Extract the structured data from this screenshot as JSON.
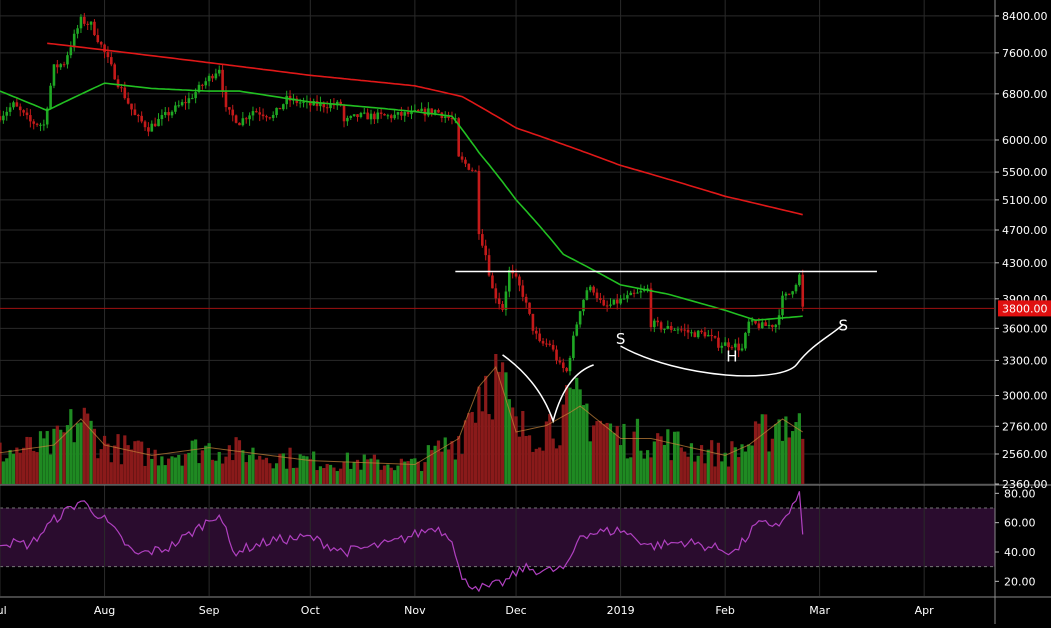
{
  "chart_data": {
    "type": "candlestick",
    "colors": {
      "background": "#000000",
      "grid": "#2a2a2a",
      "up": "#1fa824",
      "down": "#c41a1a",
      "sma_short": "#22c022",
      "sma_long": "#e01818",
      "volume_ma": "#c8843a",
      "rsi_line": "#b040c0",
      "rsi_band": "#2a0c2e",
      "axis_text": "#ffffff",
      "last_price_bg": "#e01010",
      "annotation": "#ffffff"
    },
    "x_axis": {
      "labels": [
        "Jul",
        "Aug",
        "Sep",
        "Oct",
        "Nov",
        "Dec",
        "2019",
        "Feb",
        "Mar",
        "Apr"
      ],
      "label_dates": [
        "2018-07-01",
        "2018-08-01",
        "2018-09-01",
        "2018-10-01",
        "2018-11-01",
        "2018-12-01",
        "2019-01-01",
        "2019-02-01",
        "2019-03-01",
        "2019-04-01"
      ],
      "range": [
        "2018-07-01",
        "2019-04-22"
      ]
    },
    "price_axis": {
      "scale": "log",
      "range": [
        2360,
        8700
      ],
      "ticks": [
        8400,
        7600,
        6800,
        6000,
        5500,
        5100,
        4700,
        4300,
        3900,
        3600,
        3300,
        3000,
        2760,
        2560,
        2360
      ],
      "tick_labels": [
        "8400.00",
        "7600.00",
        "6800.00",
        "6000.00",
        "5500.00",
        "5100.00",
        "4700.00",
        "4300.00",
        "3900.00",
        "3600.00",
        "3300.00",
        "3000.00",
        "2760.00",
        "2560.00",
        "2360.00"
      ],
      "last_price": 3800,
      "last_price_label": "3800.00"
    },
    "price_keyframes": [
      [
        "2018-07-01",
        6400
      ],
      [
        "2018-07-05",
        6600
      ],
      [
        "2018-07-10",
        6300
      ],
      [
        "2018-07-14",
        6250
      ],
      [
        "2018-07-17",
        7300
      ],
      [
        "2018-07-20",
        7400
      ],
      [
        "2018-07-25",
        8300
      ],
      [
        "2018-07-28",
        8200
      ],
      [
        "2018-08-01",
        7600
      ],
      [
        "2018-08-05",
        7000
      ],
      [
        "2018-08-10",
        6400
      ],
      [
        "2018-08-14",
        6200
      ],
      [
        "2018-08-20",
        6450
      ],
      [
        "2018-08-26",
        6700
      ],
      [
        "2018-09-01",
        7100
      ],
      [
        "2018-09-04",
        7300
      ],
      [
        "2018-09-06",
        6500
      ],
      [
        "2018-09-10",
        6300
      ],
      [
        "2018-09-14",
        6500
      ],
      [
        "2018-09-20",
        6400
      ],
      [
        "2018-09-24",
        6700
      ],
      [
        "2018-10-01",
        6600
      ],
      [
        "2018-10-10",
        6600
      ],
      [
        "2018-10-11",
        6300
      ],
      [
        "2018-10-15",
        6400
      ],
      [
        "2018-10-25",
        6400
      ],
      [
        "2018-11-01",
        6450
      ],
      [
        "2018-11-07",
        6500
      ],
      [
        "2018-11-13",
        6300
      ],
      [
        "2018-11-14",
        5700
      ],
      [
        "2018-11-19",
        5500
      ],
      [
        "2018-11-20",
        4700
      ],
      [
        "2018-11-22",
        4400
      ],
      [
        "2018-11-24",
        4000
      ],
      [
        "2018-11-27",
        3800
      ],
      [
        "2018-11-29",
        4200
      ],
      [
        "2018-12-01",
        4100
      ],
      [
        "2018-12-03",
        3950
      ],
      [
        "2018-12-06",
        3600
      ],
      [
        "2018-12-08",
        3450
      ],
      [
        "2018-12-11",
        3450
      ],
      [
        "2018-12-14",
        3250
      ],
      [
        "2018-12-16",
        3200
      ],
      [
        "2018-12-18",
        3500
      ],
      [
        "2018-12-20",
        3800
      ],
      [
        "2018-12-22",
        4000
      ],
      [
        "2018-12-24",
        4000
      ],
      [
        "2018-12-27",
        3800
      ],
      [
        "2018-12-30",
        3850
      ],
      [
        "2019-01-02",
        3900
      ],
      [
        "2019-01-06",
        3950
      ],
      [
        "2019-01-09",
        4000
      ],
      [
        "2019-01-10",
        3650
      ],
      [
        "2019-01-14",
        3600
      ],
      [
        "2019-01-18",
        3600
      ],
      [
        "2019-01-22",
        3550
      ],
      [
        "2019-01-26",
        3550
      ],
      [
        "2019-01-30",
        3450
      ],
      [
        "2019-02-03",
        3450
      ],
      [
        "2019-02-06",
        3400
      ],
      [
        "2019-02-08",
        3650
      ],
      [
        "2019-02-12",
        3620
      ],
      [
        "2019-02-16",
        3640
      ],
      [
        "2019-02-18",
        3900
      ],
      [
        "2019-02-20",
        3950
      ],
      [
        "2019-02-23",
        4150
      ],
      [
        "2019-02-24",
        3800
      ]
    ],
    "sma_short_keyframes": [
      [
        "2018-07-01",
        6850
      ],
      [
        "2018-07-15",
        6500
      ],
      [
        "2018-08-01",
        7000
      ],
      [
        "2018-08-15",
        6900
      ],
      [
        "2018-09-01",
        6850
      ],
      [
        "2018-09-10",
        6850
      ],
      [
        "2018-10-01",
        6650
      ],
      [
        "2018-10-20",
        6550
      ],
      [
        "2018-11-01",
        6480
      ],
      [
        "2018-11-12",
        6400
      ],
      [
        "2018-11-20",
        5800
      ],
      [
        "2018-12-01",
        5100
      ],
      [
        "2018-12-15",
        4400
      ],
      [
        "2019-01-01",
        4050
      ],
      [
        "2019-01-15",
        3950
      ],
      [
        "2019-02-01",
        3780
      ],
      [
        "2019-02-10",
        3680
      ],
      [
        "2019-02-24",
        3720
      ]
    ],
    "sma_long_keyframes": [
      [
        "2018-07-15",
        7800
      ],
      [
        "2018-09-01",
        7400
      ],
      [
        "2018-10-01",
        7150
      ],
      [
        "2018-11-01",
        6950
      ],
      [
        "2018-11-15",
        6750
      ],
      [
        "2018-12-01",
        6200
      ],
      [
        "2019-01-01",
        5600
      ],
      [
        "2019-02-01",
        5150
      ],
      [
        "2019-02-24",
        4900
      ]
    ],
    "volume_keyframes": [
      [
        "2018-07-01",
        0.24
      ],
      [
        "2018-07-17",
        0.3
      ],
      [
        "2018-07-25",
        0.5
      ],
      [
        "2018-08-01",
        0.3
      ],
      [
        "2018-08-15",
        0.22
      ],
      [
        "2018-09-01",
        0.28
      ],
      [
        "2018-10-01",
        0.18
      ],
      [
        "2018-11-01",
        0.15
      ],
      [
        "2018-11-14",
        0.35
      ],
      [
        "2018-11-20",
        0.75
      ],
      [
        "2018-11-25",
        0.9
      ],
      [
        "2018-12-01",
        0.4
      ],
      [
        "2018-12-10",
        0.45
      ],
      [
        "2018-12-17",
        0.55
      ],
      [
        "2018-12-20",
        0.6
      ],
      [
        "2019-01-01",
        0.35
      ],
      [
        "2019-01-10",
        0.35
      ],
      [
        "2019-02-01",
        0.22
      ],
      [
        "2019-02-08",
        0.3
      ],
      [
        "2019-02-18",
        0.5
      ],
      [
        "2019-02-24",
        0.4
      ]
    ],
    "rsi_axis": {
      "range": [
        10,
        85
      ],
      "ticks": [
        80,
        60,
        40,
        20
      ],
      "tick_labels": [
        "80.00",
        "60.00",
        "40.00",
        "20.00"
      ],
      "band": [
        30,
        70
      ]
    },
    "rsi_keyframes": [
      [
        "2018-07-01",
        47
      ],
      [
        "2018-07-10",
        45
      ],
      [
        "2018-07-17",
        62
      ],
      [
        "2018-07-25",
        75
      ],
      [
        "2018-08-01",
        62
      ],
      [
        "2018-08-10",
        38
      ],
      [
        "2018-08-20",
        43
      ],
      [
        "2018-08-28",
        55
      ],
      [
        "2018-09-04",
        67
      ],
      [
        "2018-09-08",
        40
      ],
      [
        "2018-09-20",
        48
      ],
      [
        "2018-10-01",
        50
      ],
      [
        "2018-10-11",
        40
      ],
      [
        "2018-10-25",
        46
      ],
      [
        "2018-11-07",
        57
      ],
      [
        "2018-11-12",
        50
      ],
      [
        "2018-11-15",
        20
      ],
      [
        "2018-11-22",
        15
      ],
      [
        "2018-11-28",
        20
      ],
      [
        "2018-12-03",
        29
      ],
      [
        "2018-12-10",
        27
      ],
      [
        "2018-12-16",
        29
      ],
      [
        "2018-12-20",
        52
      ],
      [
        "2019-01-01",
        55
      ],
      [
        "2019-01-10",
        44
      ],
      [
        "2019-01-20",
        47
      ],
      [
        "2019-02-04",
        40
      ],
      [
        "2019-02-10",
        58
      ],
      [
        "2019-02-18",
        60
      ],
      [
        "2019-02-23",
        78
      ],
      [
        "2019-02-24",
        55
      ]
    ],
    "annotations": {
      "resistance_line": {
        "from": "2018-11-13",
        "to": "2019-03-18",
        "price": 4200
      },
      "left_shoulder_label": "S",
      "head_label": "H",
      "right_shoulder_label": "S",
      "left_shoulder_date": "2019-01-01",
      "left_shoulder_price": 3450,
      "head_date": "2019-02-03",
      "head_price": 3290,
      "right_shoulder_date": "2019-03-08",
      "right_shoulder_price": 3580
    }
  }
}
